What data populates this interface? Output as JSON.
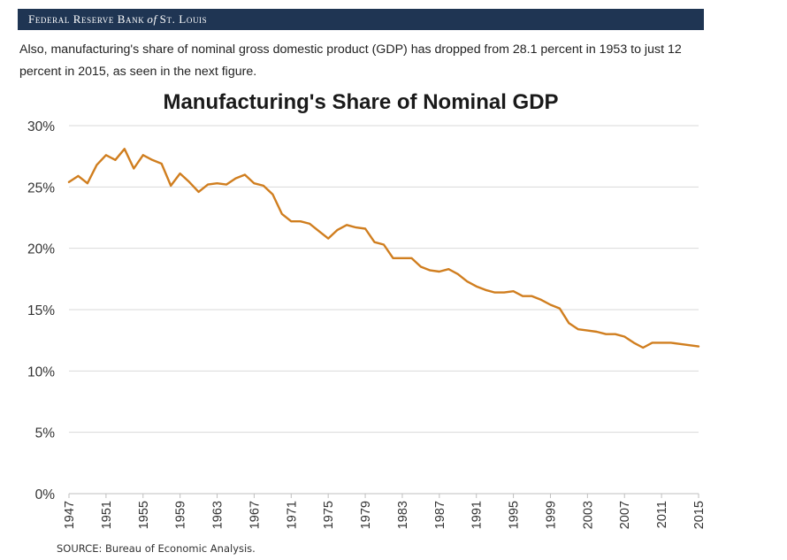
{
  "header": {
    "brand_part1": "Federal Reserve Bank",
    "brand_of": "of",
    "brand_part2": "St. Louis"
  },
  "intro_text": "Also, manufacturing's share of nominal gross domestic product (GDP) has dropped from 28.1 percent in 1953 to just 12 percent in 2015, as seen in the next figure.",
  "source_text": "SOURCE: Bureau of Economic Analysis.",
  "colors": {
    "line": "#d07e1f",
    "banner": "#1f3553",
    "grid": "#d9d9d9"
  },
  "chart_data": {
    "type": "line",
    "title": "Manufacturing's Share of Nominal GDP",
    "xlabel": "",
    "ylabel": "",
    "ylim": [
      0,
      30
    ],
    "y_ticks": [
      "0%",
      "5%",
      "10%",
      "15%",
      "20%",
      "25%",
      "30%"
    ],
    "x_tick_labels": [
      "1947",
      "1951",
      "1955",
      "1959",
      "1963",
      "1967",
      "1971",
      "1975",
      "1979",
      "1983",
      "1987",
      "1991",
      "1995",
      "1999",
      "2003",
      "2007",
      "2011",
      "2015"
    ],
    "grid": "horizontal",
    "x": [
      1947,
      1948,
      1949,
      1950,
      1951,
      1952,
      1953,
      1954,
      1955,
      1956,
      1957,
      1958,
      1959,
      1960,
      1961,
      1962,
      1963,
      1964,
      1965,
      1966,
      1967,
      1968,
      1969,
      1970,
      1971,
      1972,
      1973,
      1974,
      1975,
      1976,
      1977,
      1978,
      1979,
      1980,
      1981,
      1982,
      1983,
      1984,
      1985,
      1986,
      1987,
      1988,
      1989,
      1990,
      1991,
      1992,
      1993,
      1994,
      1995,
      1996,
      1997,
      1998,
      1999,
      2000,
      2001,
      2002,
      2003,
      2004,
      2005,
      2006,
      2007,
      2008,
      2009,
      2010,
      2011,
      2012,
      2013,
      2014,
      2015
    ],
    "series": [
      {
        "values": [
          25.4,
          25.9,
          25.3,
          26.8,
          27.6,
          27.2,
          28.1,
          26.5,
          27.6,
          27.2,
          26.9,
          25.1,
          26.1,
          25.4,
          24.6,
          25.2,
          25.3,
          25.2,
          25.7,
          26.0,
          25.3,
          25.1,
          24.4,
          22.8,
          22.2,
          22.2,
          22.0,
          21.4,
          20.8,
          21.5,
          21.9,
          21.7,
          21.6,
          20.5,
          20.3,
          19.2,
          19.2,
          19.2,
          18.5,
          18.2,
          18.1,
          18.3,
          17.9,
          17.3,
          16.9,
          16.6,
          16.4,
          16.4,
          16.5,
          16.1,
          16.1,
          15.8,
          15.4,
          15.1,
          13.9,
          13.4,
          13.3,
          13.2,
          13.0,
          13.0,
          12.8,
          12.3,
          11.9,
          12.3,
          12.3,
          12.3,
          12.2,
          12.1,
          12.0
        ]
      }
    ]
  }
}
